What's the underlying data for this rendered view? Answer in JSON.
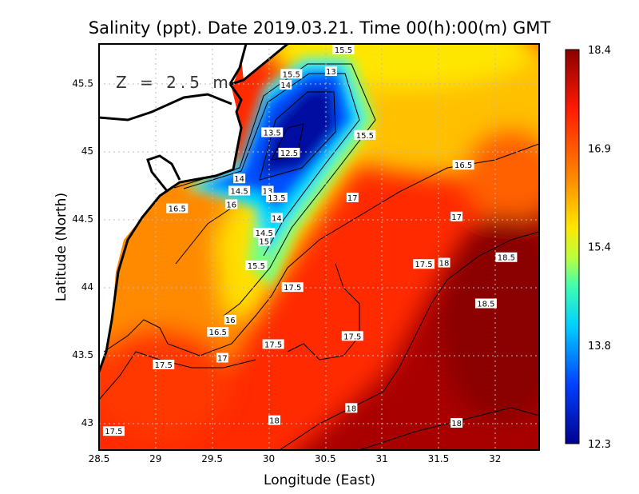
{
  "chart_data": {
    "type": "heatmap",
    "title": "Salinity (ppt). Date 2019.03.21. Time 00(h):00(m) GMT",
    "depth_label": "Z = 2.5 m",
    "xlabel": "Longitude (East)",
    "ylabel": "Latitude (North)",
    "xlim": [
      28.5,
      32.39
    ],
    "ylim": [
      42.8,
      45.79
    ],
    "x_ticks": [
      "28.5",
      "29",
      "29.5",
      "30",
      "30.5",
      "31",
      "31.5",
      "32"
    ],
    "y_ticks": [
      "43",
      "43.5",
      "44",
      "44.5",
      "45",
      "45.5"
    ],
    "grid": true,
    "colorbar": {
      "min": 12.3,
      "max": 18.4,
      "tick_labels": [
        "18.4",
        "16.9",
        "15.4",
        "13.8",
        "12.3"
      ],
      "colors": [
        "#8b0000",
        "#ff1a00",
        "#ff8c00",
        "#ffe600",
        "#7cff7c",
        "#00e0ff",
        "#0050ff",
        "#000090"
      ]
    },
    "contour_labels": [
      {
        "text": "15.5",
        "lon": 30.66,
        "lat": 45.75
      },
      {
        "text": "15.5",
        "lon": 30.2,
        "lat": 45.57
      },
      {
        "text": "14",
        "lon": 30.15,
        "lat": 45.49
      },
      {
        "text": "13",
        "lon": 30.55,
        "lat": 45.59
      },
      {
        "text": "13.5",
        "lon": 30.03,
        "lat": 45.14
      },
      {
        "text": "12.5",
        "lon": 30.18,
        "lat": 44.99
      },
      {
        "text": "15.5",
        "lon": 30.85,
        "lat": 45.12
      },
      {
        "text": "14",
        "lon": 29.74,
        "lat": 44.8
      },
      {
        "text": "14.5",
        "lon": 29.74,
        "lat": 44.71
      },
      {
        "text": "13",
        "lon": 29.99,
        "lat": 44.71
      },
      {
        "text": "13.5",
        "lon": 30.07,
        "lat": 44.66
      },
      {
        "text": "16",
        "lon": 29.67,
        "lat": 44.61
      },
      {
        "text": "16.5",
        "lon": 29.19,
        "lat": 44.58
      },
      {
        "text": "17",
        "lon": 30.74,
        "lat": 44.66
      },
      {
        "text": "14",
        "lon": 30.07,
        "lat": 44.51
      },
      {
        "text": "14.5",
        "lon": 29.96,
        "lat": 44.4
      },
      {
        "text": "15",
        "lon": 29.96,
        "lat": 44.34
      },
      {
        "text": "15.5",
        "lon": 29.89,
        "lat": 44.16
      },
      {
        "text": "16.5",
        "lon": 31.72,
        "lat": 44.9
      },
      {
        "text": "17",
        "lon": 31.66,
        "lat": 44.52
      },
      {
        "text": "17.5",
        "lon": 31.37,
        "lat": 44.17
      },
      {
        "text": "18",
        "lon": 31.55,
        "lat": 44.18
      },
      {
        "text": "18.5",
        "lon": 32.1,
        "lat": 44.22
      },
      {
        "text": "17.5",
        "lon": 30.21,
        "lat": 44.0
      },
      {
        "text": "18.5",
        "lon": 31.92,
        "lat": 43.88
      },
      {
        "text": "16",
        "lon": 29.66,
        "lat": 43.76
      },
      {
        "text": "16.5",
        "lon": 29.55,
        "lat": 43.67
      },
      {
        "text": "17.5",
        "lon": 30.74,
        "lat": 43.64
      },
      {
        "text": "17.5",
        "lon": 30.04,
        "lat": 43.58
      },
      {
        "text": "17",
        "lon": 29.59,
        "lat": 43.48
      },
      {
        "text": "17.5",
        "lon": 29.07,
        "lat": 43.43
      },
      {
        "text": "18",
        "lon": 30.73,
        "lat": 43.11
      },
      {
        "text": "18",
        "lon": 30.05,
        "lat": 43.02
      },
      {
        "text": "18",
        "lon": 31.66,
        "lat": 43.0
      },
      {
        "text": "17.5",
        "lon": 28.63,
        "lat": 42.94
      }
    ]
  }
}
